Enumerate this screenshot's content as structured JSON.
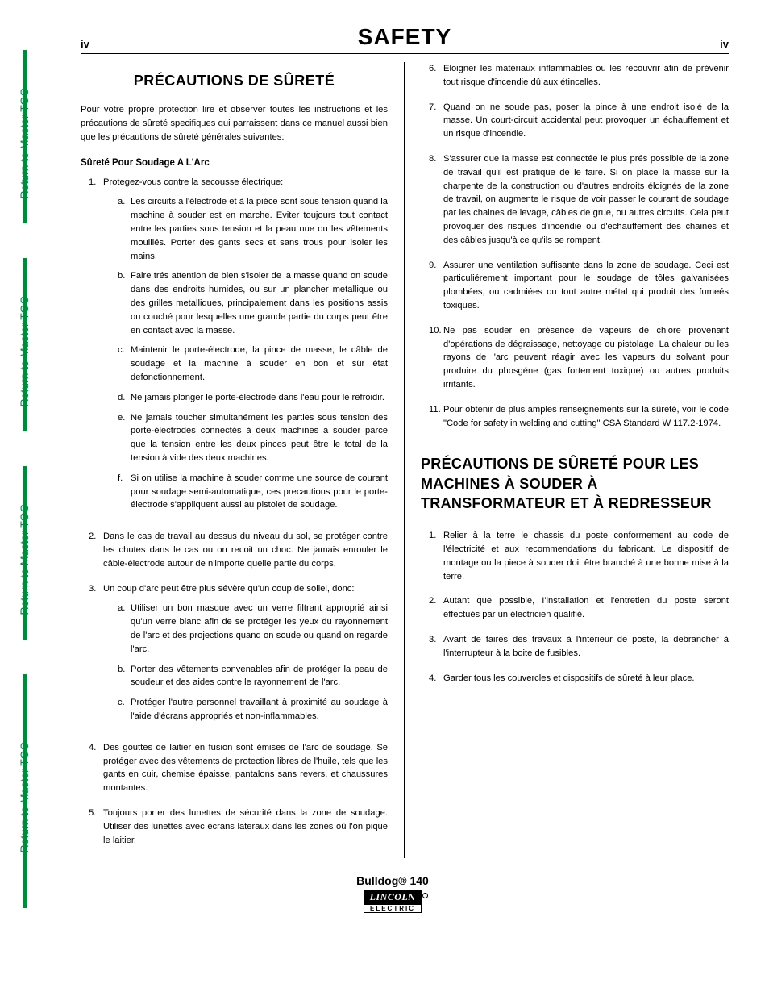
{
  "page": {
    "number_left": "iv",
    "number_right": "iv",
    "title": "SAFETY",
    "side_tab_label": "Return to Master TOC"
  },
  "left": {
    "subtitle": "PRÉCAUTIONS DE SÛRETÉ",
    "intro": "Pour votre propre protection lire et observer toutes les instructions et les précautions de sûreté specifiques qui parraissent dans ce manuel aussi bien que les précautions de sûreté générales suivantes:",
    "section_label": "Sûreté Pour Soudage A L'Arc",
    "item1": "Protegez-vous contre la secousse électrique:",
    "item1a": "Les circuits à l'électrode et à la piéce sont sous tension quand la machine à souder est en marche. Eviter toujours tout contact entre les parties sous tension et la peau nue ou les vêtements mouillés. Porter des gants secs et sans trous pour isoler les mains.",
    "item1b": "Faire trés attention de bien s'isoler de la masse quand on soude dans des endroits humides, ou sur un plancher metallique ou des grilles metalliques, principalement dans les positions assis ou couché pour lesquelles une grande partie du corps peut être en contact avec la masse.",
    "item1c": "Maintenir le porte-électrode, la pince de masse, le câble de soudage et la machine à souder en bon et sûr état defonctionnement.",
    "item1d": "Ne jamais plonger le porte-électrode dans l'eau pour le refroidir.",
    "item1e": "Ne jamais toucher simultanément les parties sous tension des porte-électrodes connectés à deux machines à souder parce que la tension entre les deux pinces peut être le total de la tension à vide des deux machines.",
    "item1f": "Si on utilise la machine à souder comme une source de courant pour soudage semi-automatique, ces precautions pour le porte-électrode s'appliquent aussi au pistolet de soudage.",
    "item2": "Dans le cas de travail au dessus du niveau du sol, se protéger contre les chutes dans le cas ou on recoit un choc. Ne jamais enrouler le câble-électrode autour de n'importe quelle partie du corps.",
    "item3": "Un coup d'arc peut être plus sévère qu'un coup de soliel, donc:",
    "item3a": "Utiliser un bon masque avec un verre filtrant approprié ainsi qu'un verre blanc afin de se protéger les yeux du rayonnement de l'arc et des projections quand on soude ou quand on regarde l'arc.",
    "item3b": "Porter des vêtements convenables afin de protéger la peau de soudeur et des aides contre le rayonnement de l'arc.",
    "item3c": "Protéger l'autre personnel travaillant à proximité au soudage à l'aide d'écrans appropriés et non-inflammables.",
    "item4": "Des gouttes de laitier en fusion sont émises de l'arc de soudage. Se protéger avec des vêtements de protection libres de l'huile, tels que les gants en cuir, chemise épaisse, pantalons sans revers, et chaussures montantes.",
    "item5": "Toujours porter des lunettes de sécurité dans la zone de soudage. Utiliser des lunettes avec écrans lateraux dans les zones où l'on pique le laitier."
  },
  "right": {
    "item6": "Eloigner les matériaux inflammables ou les recouvrir afin de prévenir tout risque d'incendie dû aux étincelles.",
    "item7": "Quand on ne soude pas, poser la pince à une endroit isolé de la masse. Un court-circuit accidental peut provoquer un échauffement et un risque d'incendie.",
    "item8": "S'assurer que la masse est connectée le plus prés possible de la zone de travail qu'il est pratique de le faire. Si on place la masse sur la charpente de la construction ou d'autres endroits éloignés de la zone de travail, on augmente le risque de voir passer le courant de soudage par les chaines de levage, câbles de grue, ou autres circuits. Cela peut provoquer des risques d'incendie ou d'echauffement des chaines et des câbles jusqu'à ce qu'ils se rompent.",
    "item9": "Assurer une ventilation suffisante dans la zone de soudage. Ceci est particuliérement important pour le soudage de tôles galvanisées plombées, ou cadmiées ou tout autre métal qui produit des fumeés toxiques.",
    "item10": "Ne pas souder en présence de vapeurs de chlore provenant d'opérations de dégraissage, nettoyage ou pistolage. La chaleur ou les rayons de l'arc peuvent réagir avec les vapeurs du solvant pour produire du phosgéne (gas fortement toxique) ou autres produits irritants.",
    "item11": "Pour obtenir de plus amples renseignements sur la sûreté, voir le code \"Code for safety in welding and cutting\" CSA Standard W 117.2-1974.",
    "subtitle2": "PRÉCAUTIONS DE SÛRETÉ POUR LES MACHINES À SOUDER À TRANSFORMATEUR ET À REDRESSEUR",
    "b1": "Relier à la terre le chassis du poste conformement au code de l'électricité et aux recommendations du fabricant. Le dispositif de montage ou la piece à souder doit être branché à une bonne mise à la terre.",
    "b2": "Autant que possible, I'installation et l'entretien du poste seront effectués par un électricien qualifié.",
    "b3": "Avant de faires des travaux à l'interieur de poste, la debrancher à l'interrupteur à la boite de fusibles.",
    "b4": "Garder tous les couvercles et dispositifs de sûreté à leur place."
  },
  "footer": {
    "product": "Bulldog® 140",
    "brand_top": "LINCOLN",
    "brand_bot": "ELECTRIC"
  }
}
